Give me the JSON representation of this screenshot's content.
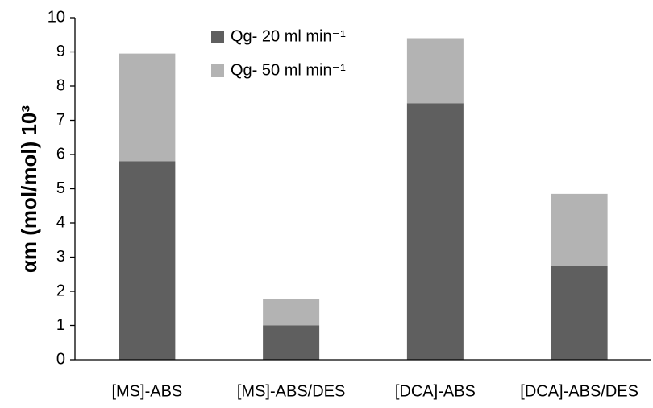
{
  "chart_data": {
    "type": "stacked_bar",
    "y_label": "αm (mol/mol) 10³",
    "categories": [
      "[MS]-ABS",
      "[MS]-ABS/DES",
      "[DCA]-ABS",
      "[DCA]-ABS/DES"
    ],
    "series": [
      {
        "name": "Qg- 20 ml min⁻¹",
        "color": "#5f5f5f",
        "values": [
          5.8,
          1.0,
          7.5,
          2.75
        ]
      },
      {
        "name": "Qg- 50 ml min⁻¹",
        "color": "#b3b3b3",
        "values": [
          3.15,
          0.78,
          1.9,
          2.1
        ]
      }
    ],
    "ylim": [
      0,
      10
    ],
    "yticks": [
      0,
      1,
      2,
      3,
      4,
      5,
      6,
      7,
      8,
      9,
      10
    ],
    "grid": false,
    "legend": "top"
  }
}
